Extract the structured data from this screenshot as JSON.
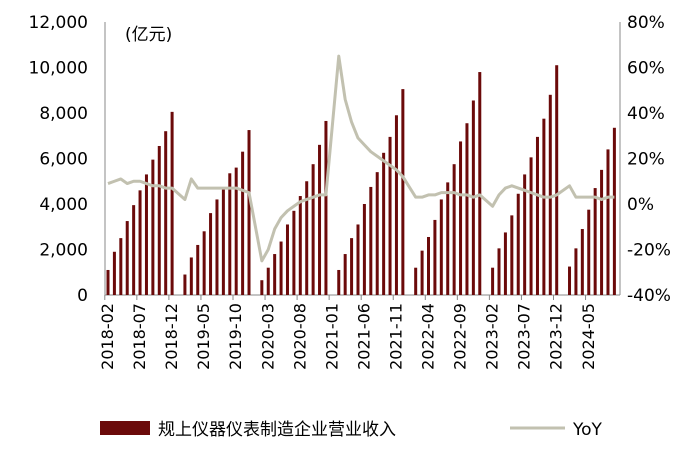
{
  "chart_data": {
    "type": "bar+line",
    "unit_label": "(亿元)",
    "colors": {
      "bar": "#6b0a0a",
      "line": "#c2c1b0"
    },
    "y_left": {
      "min": 0,
      "max": 12000,
      "ticks": [
        "0",
        "2,000",
        "4,000",
        "6,000",
        "8,000",
        "10,000",
        "12,000"
      ]
    },
    "y_right": {
      "min": -40,
      "max": 80,
      "ticks": [
        "-40%",
        "-20%",
        "0%",
        "20%",
        "40%",
        "60%",
        "80%"
      ]
    },
    "x_tick_labels": [
      "2018-02",
      "2018-07",
      "2018-12",
      "2019-05",
      "2019-10",
      "2020-03",
      "2020-08",
      "2021-01",
      "2021-06",
      "2021-11",
      "2022-04",
      "2022-09",
      "2023-02",
      "2023-07",
      "2023-12",
      "2024-05"
    ],
    "categories": [
      "2018-02",
      "2018-03",
      "2018-04",
      "2018-05",
      "2018-06",
      "2018-07",
      "2018-08",
      "2018-09",
      "2018-10",
      "2018-11",
      "2018-12",
      "2019-01",
      "2019-02",
      "2019-03",
      "2019-04",
      "2019-05",
      "2019-06",
      "2019-07",
      "2019-08",
      "2019-09",
      "2019-10",
      "2019-11",
      "2019-12",
      "2020-01",
      "2020-02",
      "2020-03",
      "2020-04",
      "2020-05",
      "2020-06",
      "2020-07",
      "2020-08",
      "2020-09",
      "2020-10",
      "2020-11",
      "2020-12",
      "2021-01",
      "2021-02",
      "2021-03",
      "2021-04",
      "2021-05",
      "2021-06",
      "2021-07",
      "2021-08",
      "2021-09",
      "2021-10",
      "2021-11",
      "2021-12",
      "2022-01",
      "2022-02",
      "2022-03",
      "2022-04",
      "2022-05",
      "2022-06",
      "2022-07",
      "2022-08",
      "2022-09",
      "2022-10",
      "2022-11",
      "2022-12",
      "2023-01",
      "2023-02",
      "2023-03",
      "2023-04",
      "2023-05",
      "2023-06",
      "2023-07",
      "2023-08",
      "2023-09",
      "2023-10",
      "2023-11",
      "2023-12",
      "2024-01",
      "2024-02",
      "2024-03",
      "2024-04",
      "2024-05",
      "2024-06",
      "2024-07",
      "2024-08",
      "2024-09"
    ],
    "series": [
      {
        "name": "规上仪器仪表制造企业营业收入",
        "type": "bar",
        "axis": "left",
        "values": [
          1100,
          1900,
          2500,
          3250,
          3950,
          4600,
          5300,
          5950,
          6550,
          7200,
          8050,
          null,
          900,
          1650,
          2200,
          2800,
          3600,
          4200,
          4700,
          5350,
          5600,
          6300,
          7250,
          null,
          650,
          1200,
          1800,
          2350,
          3100,
          3700,
          4350,
          5000,
          5750,
          6600,
          7650,
          null,
          1100,
          1800,
          2500,
          3100,
          4000,
          4750,
          5400,
          6250,
          6950,
          7900,
          9050,
          null,
          1200,
          1950,
          2550,
          3300,
          4200,
          4950,
          5750,
          6750,
          7550,
          8550,
          9800,
          null,
          1200,
          2050,
          2750,
          3500,
          4450,
          5300,
          6050,
          6950,
          7750,
          8800,
          10100,
          null,
          1250,
          2050,
          2900,
          3750,
          4700,
          5500,
          6400,
          7350
        ]
      },
      {
        "name": "YoY",
        "type": "line",
        "axis": "right",
        "values": [
          9,
          10,
          11,
          9,
          10,
          10,
          9,
          8,
          8,
          7,
          7,
          null,
          2,
          11,
          7,
          7,
          7,
          7,
          7,
          7,
          7,
          6,
          5,
          null,
          -25,
          -20,
          -11,
          -6,
          -3,
          -1,
          1,
          2,
          3,
          4,
          4,
          null,
          65,
          46,
          36,
          29,
          26,
          23,
          21,
          19,
          17,
          15,
          12,
          null,
          3,
          3,
          4,
          4,
          5,
          5,
          5,
          4,
          4,
          3,
          4,
          null,
          -1,
          4,
          7,
          8,
          7,
          6,
          5,
          4,
          3,
          3,
          4,
          null,
          8,
          3,
          3,
          3,
          3,
          2,
          3,
          3
        ]
      }
    ],
    "legend": {
      "position": "bottom",
      "entries": [
        "规上仪器仪表制造企业营业收入",
        "YoY"
      ]
    }
  }
}
